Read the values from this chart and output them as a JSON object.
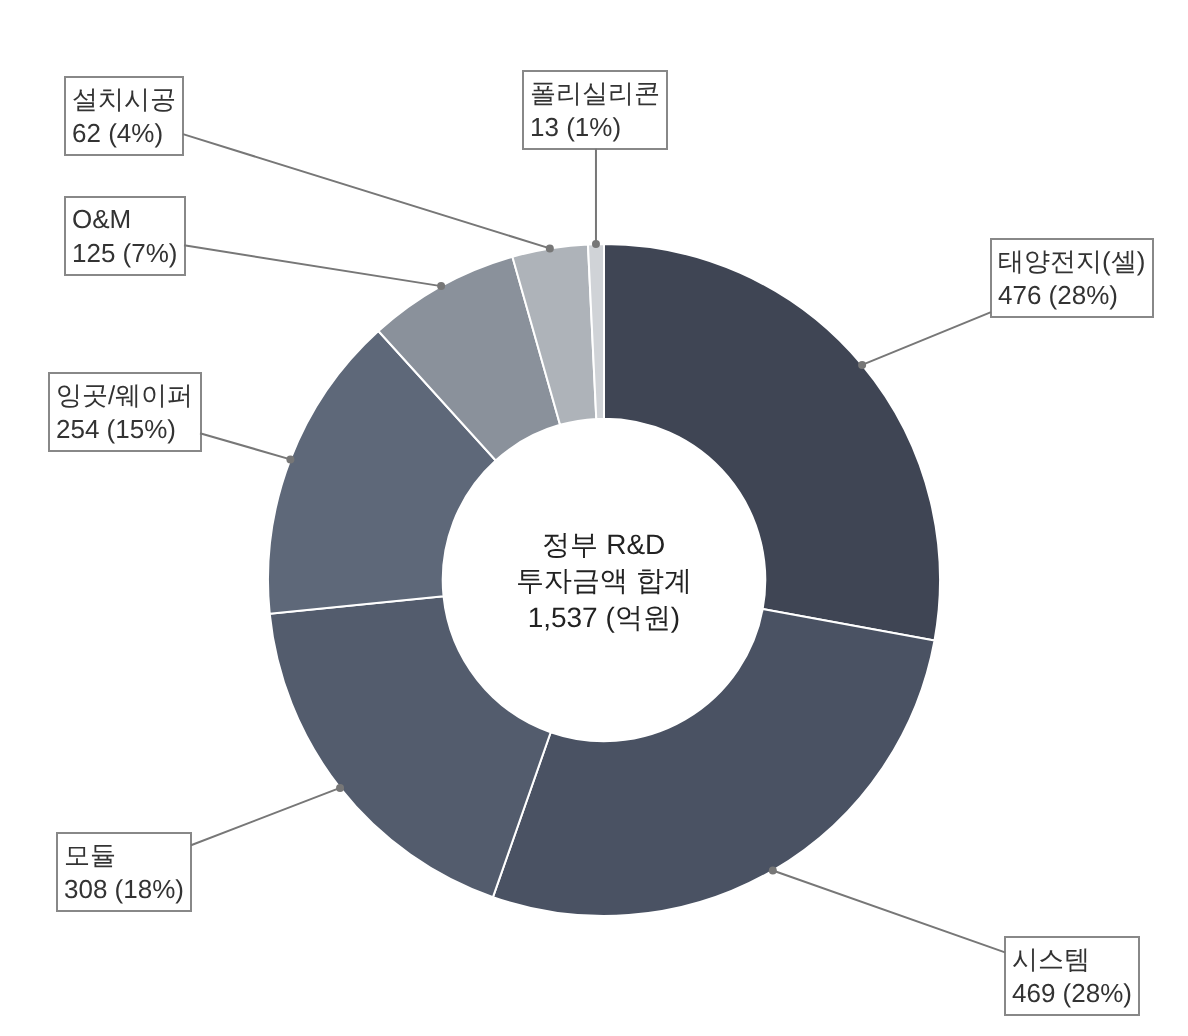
{
  "chart_data": {
    "type": "donut",
    "categories": [
      "태양전지(셀)",
      "시스템",
      "모듈",
      "잉곳/웨이퍼",
      "O&M",
      "설치시공",
      "폴리실리콘"
    ],
    "values": [
      476,
      469,
      308,
      254,
      125,
      62,
      13
    ],
    "value_labels": [
      "476 (28%)",
      "469 (28%)",
      "308 (18%)",
      "254 (15%)",
      "125 (7%)",
      "62 (4%)",
      "13 (1%)"
    ],
    "colors": [
      "#3f4554",
      "#4a5263",
      "#535c6d",
      "#5e6879",
      "#8a919b",
      "#aeb3b9",
      "#d0d3d7"
    ],
    "annotations": [
      "정부 R&D\n투자금액 합계\n1,537 (억원)"
    ],
    "legend": false
  }
}
